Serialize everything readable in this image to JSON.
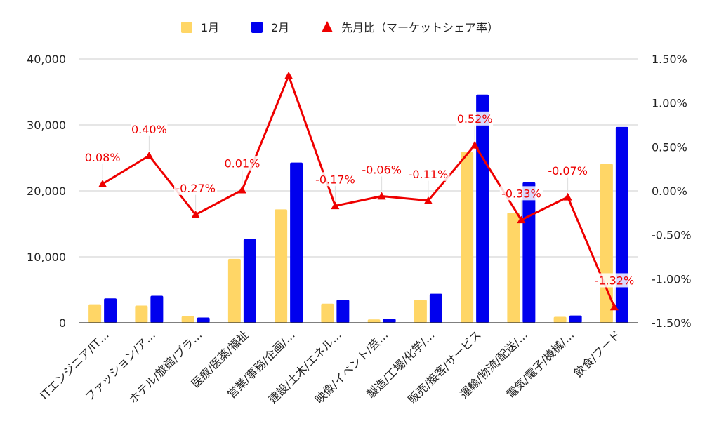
{
  "chart_data": {
    "type": "bar",
    "categories": [
      "ITエンジニア/IT…",
      "ファッション/ア…",
      "ホテル/旅館/ブラ…",
      "医療/医薬/福祉",
      "営業/事務/企画/…",
      "建設/土木/エネル…",
      "映像/イベント/芸…",
      "製造/工場/化学/…",
      "販売/接客/サービス",
      "運輸/物流/配送/…",
      "電気/電子/機械/…",
      "飲食/フード"
    ],
    "series": [
      {
        "name": "1月",
        "type": "bar",
        "axis": "left",
        "color": "#FFD666",
        "values": [
          2800,
          2600,
          1000,
          9700,
          17200,
          2900,
          500,
          3500,
          25900,
          16700,
          900,
          24100
        ]
      },
      {
        "name": "2月",
        "type": "bar",
        "axis": "left",
        "color": "#0000EE",
        "values": [
          3700,
          4100,
          800,
          12700,
          24300,
          3500,
          600,
          4400,
          34600,
          21300,
          1100,
          29700
        ]
      },
      {
        "name": "先月比（マーケットシェア率）",
        "type": "line",
        "axis": "right",
        "color": "#EE0000",
        "marker": "triangle",
        "values": [
          0.08,
          0.4,
          -0.27,
          0.01,
          1.31,
          -0.17,
          -0.06,
          -0.11,
          0.52,
          -0.33,
          -0.07,
          -1.32
        ]
      }
    ],
    "point_labels": [
      "0.08%",
      "0.40%",
      "-0.27%",
      "0.01%",
      "",
      "-0.17%",
      "-0.06%",
      "-0.11%",
      "0.52%",
      "-0.33%",
      "-0.07%",
      "-1.32%"
    ],
    "y_left": {
      "min": 0,
      "max": 40000,
      "ticks": [
        0,
        10000,
        20000,
        30000,
        40000
      ],
      "tick_labels": [
        "0",
        "10,000",
        "20,000",
        "30,000",
        "40,000"
      ]
    },
    "y_right": {
      "min": -1.5,
      "max": 1.5,
      "ticks": [
        -1.5,
        -1.0,
        -0.5,
        0.0,
        0.5,
        1.0,
        1.5
      ],
      "tick_labels": [
        "-1.50%",
        "-1.00%",
        "-0.50%",
        "0.00%",
        "0.50%",
        "1.00%",
        "1.50%"
      ]
    },
    "grid": true,
    "legend_position": "top-center"
  }
}
